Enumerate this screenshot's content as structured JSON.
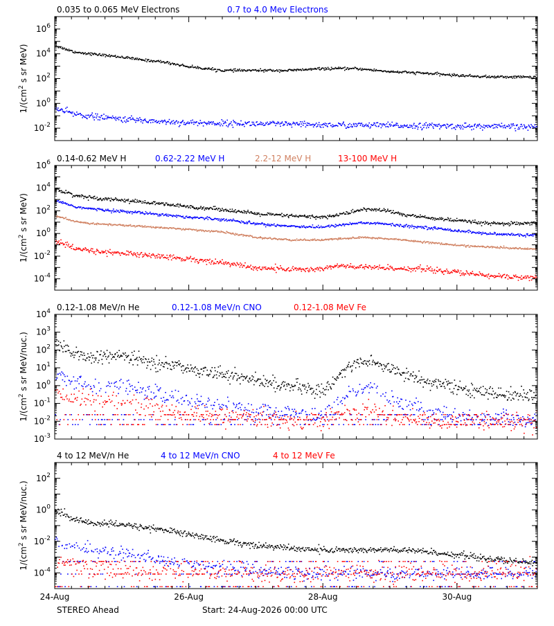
{
  "footer": {
    "left": "STEREO Ahead",
    "center": "Start: 24-Aug-2026 00:00 UTC"
  },
  "x_axis": {
    "tick_labels": [
      "24-Aug",
      "26-Aug",
      "28-Aug",
      "30-Aug"
    ],
    "tick_days": [
      0,
      2,
      4,
      6
    ],
    "range_days": [
      0,
      7.2
    ],
    "minor_tick_step_days": 0.25
  },
  "chart_data": [
    {
      "type": "scatter",
      "ylabel": "1/(cm^2 s sr MeV)",
      "yscale": "log",
      "ylim": [
        0.001,
        10000000
      ],
      "y_tick_exponents": [
        -2,
        0,
        2,
        4,
        6
      ],
      "legend": [
        {
          "label": "0.035 to 0.065 MeV Electrons",
          "color": "#000000"
        },
        {
          "label": "0.7 to 4.0 Mev Electrons",
          "color": "#0000ff"
        }
      ],
      "series": [
        {
          "name": "0.035 to 0.065 MeV Electrons",
          "color": "#000000",
          "noise": 0.05,
          "dropouts": false,
          "x": [
            0,
            0.3,
            0.6,
            1.0,
            1.3,
            1.6,
            2.0,
            2.5,
            3.0,
            3.5,
            4.0,
            4.5,
            5.0,
            5.5,
            6.0,
            6.5,
            7.0,
            7.2
          ],
          "y": [
            50000,
            15000,
            10000,
            6000,
            3500,
            2500,
            1000,
            500,
            500,
            500,
            700,
            700,
            400,
            300,
            200,
            150,
            150,
            140
          ]
        },
        {
          "name": "0.7 to 4.0 Mev Electrons",
          "color": "#0000ff",
          "noise": 0.12,
          "dropouts": false,
          "x": [
            0,
            0.3,
            0.6,
            1.0,
            1.5,
            2.0,
            3.0,
            4.0,
            5.0,
            6.0,
            7.0,
            7.2
          ],
          "y": [
            0.4,
            0.15,
            0.09,
            0.06,
            0.04,
            0.03,
            0.025,
            0.02,
            0.018,
            0.016,
            0.014,
            0.014
          ]
        }
      ]
    },
    {
      "type": "scatter",
      "ylabel": "1/(cm^2 s sr MeV)",
      "yscale": "log",
      "ylim": [
        1e-05,
        1000000
      ],
      "y_tick_exponents": [
        -4,
        -2,
        0,
        2,
        4,
        6
      ],
      "legend": [
        {
          "label": "0.14-0.62 MeV H",
          "color": "#000000"
        },
        {
          "label": "0.62-2.22 MeV H",
          "color": "#0000ff"
        },
        {
          "label": "2.2-12 MeV H",
          "color": "#d08060"
        },
        {
          "label": "13-100 MeV H",
          "color": "#ff0000"
        }
      ],
      "series": [
        {
          "name": "0.14-0.62 MeV H",
          "color": "#000000",
          "noise": 0.08,
          "dropouts": false,
          "x": [
            0,
            0.3,
            0.6,
            1.0,
            1.5,
            2.0,
            2.5,
            3.0,
            3.5,
            4.0,
            4.3,
            4.6,
            4.9,
            5.2,
            5.5,
            6.0,
            6.5,
            7.0,
            7.2
          ],
          "y": [
            10000,
            2500,
            1500,
            1000,
            500,
            250,
            150,
            60,
            40,
            30,
            60,
            150,
            130,
            50,
            30,
            15,
            8,
            8,
            9
          ]
        },
        {
          "name": "0.62-2.22 MeV H",
          "color": "#0000ff",
          "noise": 0.06,
          "dropouts": false,
          "x": [
            0,
            0.3,
            0.6,
            1.0,
            1.5,
            2.0,
            2.5,
            3.0,
            3.5,
            4.0,
            4.3,
            4.6,
            4.9,
            5.2,
            5.5,
            6.0,
            6.5,
            7.0,
            7.2
          ],
          "y": [
            1000,
            250,
            150,
            100,
            60,
            30,
            20,
            8,
            5,
            4,
            7,
            10,
            8,
            5,
            4,
            2,
            1,
            0.8,
            0.9
          ]
        },
        {
          "name": "2.2-12 MeV H",
          "color": "#d08060",
          "noise": 0.04,
          "dropouts": false,
          "x": [
            0,
            0.3,
            0.6,
            1.0,
            1.5,
            2.0,
            2.5,
            3.0,
            3.5,
            4.0,
            4.3,
            4.6,
            4.9,
            5.2,
            5.5,
            6.0,
            6.5,
            7.0,
            7.2
          ],
          "y": [
            40,
            12,
            8,
            6,
            4,
            2.5,
            1.5,
            0.5,
            0.3,
            0.3,
            0.4,
            0.5,
            0.4,
            0.3,
            0.2,
            0.1,
            0.07,
            0.05,
            0.05
          ]
        },
        {
          "name": "13-100 MeV H",
          "color": "#ff0000",
          "noise": 0.12,
          "dropouts": false,
          "x": [
            0,
            0.3,
            0.6,
            1.0,
            1.5,
            2.0,
            2.5,
            3.0,
            3.5,
            3.8,
            4.0,
            4.2,
            4.5,
            5.0,
            5.5,
            6.0,
            6.5,
            7.0,
            7.2
          ],
          "y": [
            0.25,
            0.05,
            0.03,
            0.02,
            0.012,
            0.006,
            0.003,
            0.001,
            0.0008,
            0.0007,
            0.0009,
            0.0015,
            0.0012,
            0.001,
            0.0008,
            0.0004,
            0.0002,
            0.00015,
            0.00015
          ]
        }
      ]
    },
    {
      "type": "scatter",
      "ylabel": "1/(cm^2 s sr MeV/nuc.)",
      "yscale": "log",
      "ylim": [
        0.001,
        10000
      ],
      "y_tick_exponents": [
        -3,
        -2,
        -1,
        0,
        1,
        2,
        3,
        4
      ],
      "y_tick_labels": [
        "10^-3",
        "10^-2",
        "10^-1",
        "10^0",
        "10^1",
        "10^2",
        "10^3",
        "10^4"
      ],
      "legend": [
        {
          "label": "0.12-1.08 MeV/n He",
          "color": "#000000"
        },
        {
          "label": "0.12-1.08 MeV/n CNO",
          "color": "#0000ff"
        },
        {
          "label": "0.12-1.08 MeV Fe",
          "color": "#ff0000"
        }
      ],
      "series": [
        {
          "name": "0.12-1.08 MeV/n He",
          "color": "#000000",
          "noise": 0.18,
          "dropouts": false,
          "x": [
            0,
            0.3,
            0.6,
            1.0,
            1.5,
            2.0,
            2.5,
            3.0,
            3.5,
            4.0,
            4.2,
            4.4,
            4.7,
            5.0,
            5.5,
            6.0,
            6.5,
            7.0,
            7.2
          ],
          "y": [
            200,
            60,
            40,
            50,
            20,
            10,
            5,
            2,
            1,
            0.5,
            3,
            15,
            25,
            10,
            2,
            0.8,
            0.4,
            0.3,
            0.3
          ]
        },
        {
          "name": "0.12-1.08 MeV/n CNO",
          "color": "#0000ff",
          "noise": 0.22,
          "dropouts": true,
          "x": [
            0,
            0.3,
            0.6,
            1.0,
            1.5,
            2.0,
            2.5,
            3.0,
            3.5,
            4.0,
            4.2,
            4.4,
            4.7,
            5.0,
            5.5,
            6.0,
            6.5,
            7.0,
            7.2
          ],
          "y": [
            6,
            2,
            1.2,
            1,
            0.4,
            0.15,
            0.08,
            0.04,
            0.03,
            0.025,
            0.1,
            0.4,
            0.6,
            0.2,
            0.05,
            0.02,
            0.015,
            0.012,
            0.012
          ]
        },
        {
          "name": "0.12-1.08 MeV Fe",
          "color": "#ff0000",
          "noise": 0.25,
          "dropouts": true,
          "x": [
            0,
            0.3,
            0.6,
            1.0,
            1.5,
            2.0,
            2.5,
            3.0,
            3.5,
            4.0,
            4.3,
            4.7,
            5.0,
            5.5,
            6.0,
            6.5,
            7.0,
            7.2
          ],
          "y": [
            0.4,
            0.2,
            0.15,
            0.12,
            0.06,
            0.03,
            0.02,
            0.015,
            0.012,
            0.012,
            0.03,
            0.05,
            0.02,
            0.012,
            0.01,
            0.01,
            0.01,
            0.01
          ]
        }
      ]
    },
    {
      "type": "scatter",
      "ylabel": "1/(cm^2 s sr MeV/nuc.)",
      "yscale": "log",
      "ylim": [
        1e-05,
        1000
      ],
      "y_tick_exponents": [
        -4,
        -2,
        0,
        2
      ],
      "legend": [
        {
          "label": "4 to 12 MeV/n He",
          "color": "#000000"
        },
        {
          "label": "4 to 12 MeV/n CNO",
          "color": "#0000ff"
        },
        {
          "label": "4 to 12 MeV Fe",
          "color": "#ff0000"
        }
      ],
      "series": [
        {
          "name": "4 to 12 MeV/n He",
          "color": "#000000",
          "noise": 0.1,
          "dropouts": false,
          "x": [
            0,
            0.3,
            0.6,
            1.0,
            1.5,
            2.0,
            2.5,
            3.0,
            3.5,
            4.0,
            4.5,
            5.0,
            5.5,
            6.0,
            6.5,
            7.0,
            7.2
          ],
          "y": [
            1,
            0.25,
            0.15,
            0.12,
            0.07,
            0.03,
            0.012,
            0.006,
            0.004,
            0.003,
            0.003,
            0.003,
            0.0025,
            0.0015,
            0.0008,
            0.0005,
            0.0005
          ]
        },
        {
          "name": "4 to 12 MeV/n CNO",
          "color": "#0000ff",
          "noise": 0.2,
          "dropouts": true,
          "x": [
            0,
            0.3,
            0.6,
            1.0,
            1.5,
            2.0,
            2.5,
            3.0,
            3.5,
            4.0,
            5.0,
            6.0,
            7.0,
            7.2
          ],
          "y": [
            0.012,
            0.004,
            0.003,
            0.002,
            0.0008,
            0.0004,
            0.0002,
            0.00015,
            0.0001,
            0.0001,
            0.0001,
            0.0001,
            0.0001,
            0.0001
          ]
        },
        {
          "name": "4 to 12 MeV Fe",
          "color": "#ff0000",
          "noise": 0.3,
          "dropouts": true,
          "x": [
            0,
            0.3,
            0.6,
            1.0,
            1.5,
            2.0
          ],
          "y": [
            0.0006,
            0.0003,
            0.0002,
            0.00015,
            0.0001,
            0.0001
          ]
        }
      ]
    }
  ]
}
